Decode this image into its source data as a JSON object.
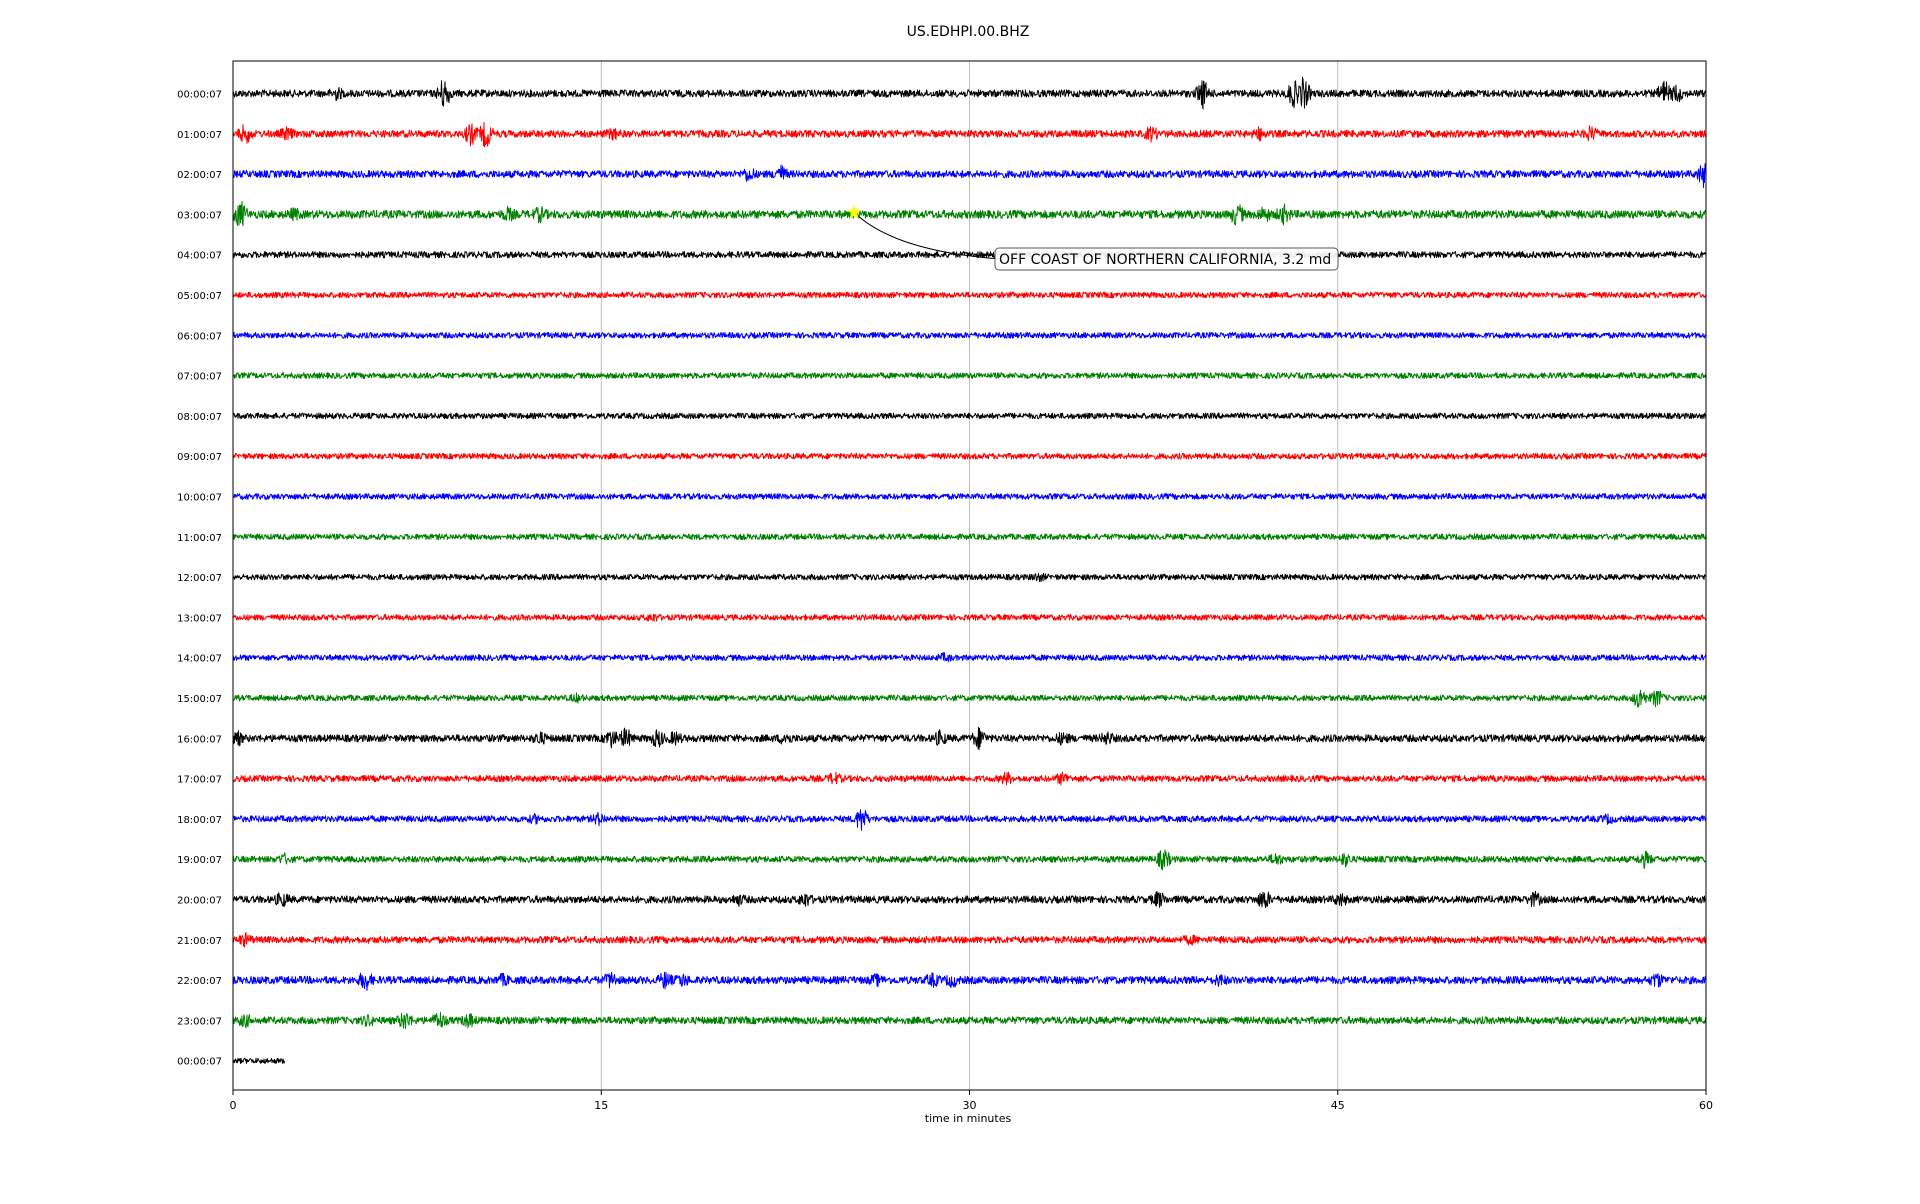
{
  "chart_data": {
    "type": "line",
    "title": "US.EDHPI.00.BHZ",
    "xlabel": "time in minutes",
    "ylabel": "",
    "xlim": [
      0,
      60
    ],
    "x_ticks": [
      "0",
      "15",
      "30",
      "45",
      "60"
    ],
    "x_tick_values": [
      0,
      15,
      30,
      45,
      60
    ],
    "grid": "vertical lines at x ticks",
    "row_colors": [
      "#000000",
      "#ff0000",
      "#0000ff",
      "#008000"
    ],
    "rows": [
      {
        "label": "00:00:07",
        "noise": 0.4,
        "events": [
          {
            "t": 4.2,
            "a": 0.5
          },
          {
            "t": 8.6,
            "a": 1.6
          },
          {
            "t": 39.5,
            "a": 1.4
          },
          {
            "t": 43.2,
            "a": 1.3
          },
          {
            "t": 43.6,
            "a": 1.6
          },
          {
            "t": 58.3,
            "a": 1.2
          },
          {
            "t": 58.8,
            "a": 0.8
          }
        ]
      },
      {
        "label": "01:00:07",
        "noise": 0.4,
        "events": [
          {
            "t": 0.5,
            "a": 0.9
          },
          {
            "t": 2.2,
            "a": 0.5
          },
          {
            "t": 9.7,
            "a": 1.0
          },
          {
            "t": 10.3,
            "a": 1.3
          },
          {
            "t": 15.5,
            "a": 0.4
          },
          {
            "t": 37.4,
            "a": 0.6
          },
          {
            "t": 41.8,
            "a": 0.5
          },
          {
            "t": 55.3,
            "a": 0.6
          }
        ]
      },
      {
        "label": "02:00:07",
        "noise": 0.4,
        "events": [
          {
            "t": 21.0,
            "a": 0.6
          },
          {
            "t": 22.3,
            "a": 0.8
          },
          {
            "t": 59.9,
            "a": 1.1
          }
        ]
      },
      {
        "label": "03:00:07",
        "noise": 0.45,
        "events": [
          {
            "t": 0.3,
            "a": 1.3
          },
          {
            "t": 2.5,
            "a": 0.4
          },
          {
            "t": 11.2,
            "a": 0.5
          },
          {
            "t": 12.5,
            "a": 0.6
          },
          {
            "t": 40.9,
            "a": 1.0
          },
          {
            "t": 42.0,
            "a": 0.6
          },
          {
            "t": 42.8,
            "a": 0.8
          }
        ]
      },
      {
        "label": "04:00:07",
        "noise": 0.35,
        "events": []
      },
      {
        "label": "05:00:07",
        "noise": 0.32,
        "events": []
      },
      {
        "label": "06:00:07",
        "noise": 0.32,
        "events": []
      },
      {
        "label": "07:00:07",
        "noise": 0.32,
        "events": []
      },
      {
        "label": "08:00:07",
        "noise": 0.32,
        "events": []
      },
      {
        "label": "09:00:07",
        "noise": 0.32,
        "events": []
      },
      {
        "label": "10:00:07",
        "noise": 0.32,
        "events": []
      },
      {
        "label": "11:00:07",
        "noise": 0.32,
        "events": []
      },
      {
        "label": "12:00:07",
        "noise": 0.32,
        "events": [
          {
            "t": 32.8,
            "a": 0.3
          }
        ]
      },
      {
        "label": "13:00:07",
        "noise": 0.32,
        "events": [
          {
            "t": 17.1,
            "a": 0.3
          }
        ]
      },
      {
        "label": "14:00:07",
        "noise": 0.32,
        "events": [
          {
            "t": 29.0,
            "a": 0.3
          }
        ]
      },
      {
        "label": "15:00:07",
        "noise": 0.32,
        "events": [
          {
            "t": 14.0,
            "a": 0.3
          },
          {
            "t": 57.3,
            "a": 1.1
          },
          {
            "t": 58.0,
            "a": 0.8
          }
        ]
      },
      {
        "label": "16:00:07",
        "noise": 0.4,
        "events": [
          {
            "t": 0.1,
            "a": 0.8
          },
          {
            "t": 12.5,
            "a": 0.5
          },
          {
            "t": 15.4,
            "a": 0.8
          },
          {
            "t": 16.0,
            "a": 0.9
          },
          {
            "t": 17.3,
            "a": 0.8
          },
          {
            "t": 18.0,
            "a": 0.5
          },
          {
            "t": 22.5,
            "a": 0.5
          },
          {
            "t": 28.8,
            "a": 0.6
          },
          {
            "t": 30.4,
            "a": 1.0
          },
          {
            "t": 33.8,
            "a": 0.5
          },
          {
            "t": 35.6,
            "a": 0.5
          }
        ]
      },
      {
        "label": "17:00:07",
        "noise": 0.35,
        "events": [
          {
            "t": 24.5,
            "a": 0.5
          },
          {
            "t": 31.5,
            "a": 0.5
          },
          {
            "t": 33.8,
            "a": 0.5
          }
        ]
      },
      {
        "label": "18:00:07",
        "noise": 0.35,
        "events": [
          {
            "t": 12.3,
            "a": 0.3
          },
          {
            "t": 14.9,
            "a": 0.5
          },
          {
            "t": 25.6,
            "a": 1.2
          },
          {
            "t": 56.0,
            "a": 0.3
          }
        ]
      },
      {
        "label": "19:00:07",
        "noise": 0.35,
        "events": [
          {
            "t": 2.1,
            "a": 0.4
          },
          {
            "t": 37.9,
            "a": 1.0
          },
          {
            "t": 42.5,
            "a": 0.5
          },
          {
            "t": 45.3,
            "a": 0.6
          },
          {
            "t": 57.5,
            "a": 0.7
          }
        ]
      },
      {
        "label": "20:00:07",
        "noise": 0.4,
        "events": [
          {
            "t": 2.0,
            "a": 0.6
          },
          {
            "t": 20.6,
            "a": 0.4
          },
          {
            "t": 23.3,
            "a": 0.6
          },
          {
            "t": 37.7,
            "a": 0.7
          },
          {
            "t": 42.0,
            "a": 0.9
          },
          {
            "t": 45.1,
            "a": 0.5
          },
          {
            "t": 53.0,
            "a": 0.6
          }
        ]
      },
      {
        "label": "21:00:07",
        "noise": 0.38,
        "events": [
          {
            "t": 0.5,
            "a": 0.5
          },
          {
            "t": 39.0,
            "a": 0.3
          }
        ]
      },
      {
        "label": "22:00:07",
        "noise": 0.42,
        "events": [
          {
            "t": 5.4,
            "a": 0.9
          },
          {
            "t": 11.0,
            "a": 0.4
          },
          {
            "t": 15.4,
            "a": 0.7
          },
          {
            "t": 17.6,
            "a": 0.7
          },
          {
            "t": 18.3,
            "a": 0.5
          },
          {
            "t": 26.2,
            "a": 0.4
          },
          {
            "t": 28.5,
            "a": 0.5
          },
          {
            "t": 29.3,
            "a": 0.5
          },
          {
            "t": 40.2,
            "a": 0.4
          },
          {
            "t": 58.0,
            "a": 0.6
          }
        ]
      },
      {
        "label": "23:00:07",
        "noise": 0.4,
        "events": [
          {
            "t": 0.5,
            "a": 0.5
          },
          {
            "t": 5.5,
            "a": 0.4
          },
          {
            "t": 7.0,
            "a": 0.8
          },
          {
            "t": 8.4,
            "a": 0.8
          },
          {
            "t": 9.6,
            "a": 0.6
          }
        ]
      },
      {
        "label": "00:00:07",
        "noise": 0.3,
        "events": [],
        "end_minute": 2.1
      }
    ],
    "annotations": [
      {
        "text": "OFF COAST OF NORTHERN CALIFORNIA, 3.2 md",
        "row": 3,
        "t": 25.3,
        "marker": "star",
        "marker_color": "#ffff00"
      }
    ]
  }
}
